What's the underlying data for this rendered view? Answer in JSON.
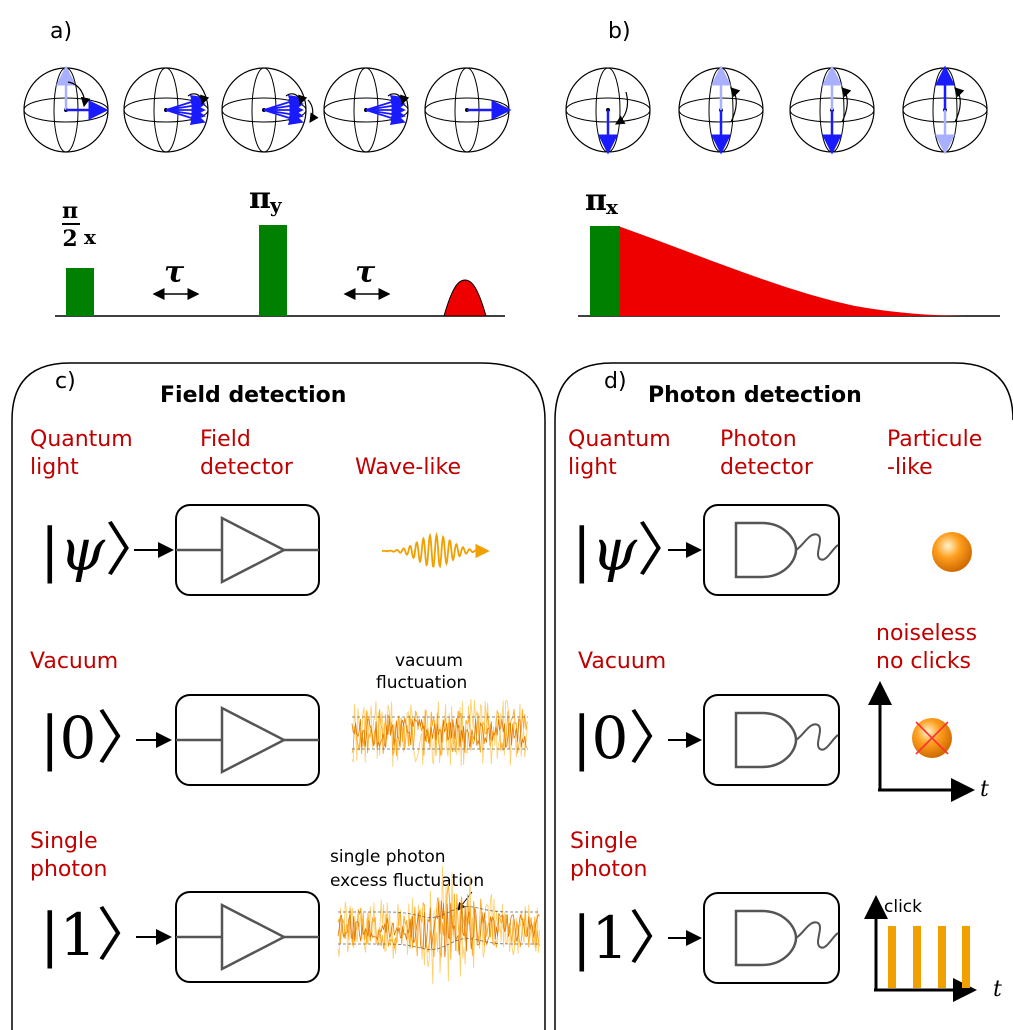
{
  "panels": {
    "a": {
      "label": "a)",
      "pulse_labels": {
        "first": "π/2 x",
        "second": "π",
        "second_sub": "y",
        "delay": "τ"
      }
    },
    "b": {
      "label": "b)",
      "pulse_label": "π",
      "pulse_sub": "x"
    },
    "c": {
      "label": "c)",
      "title": "Field detection",
      "col_source": [
        "Quantum",
        "light"
      ],
      "col_detector": [
        "Field",
        "detector"
      ],
      "col_result": "Wave-like",
      "rows": [
        {
          "name": [],
          "ket": "ψ"
        },
        {
          "name": [
            "Vacuum"
          ],
          "ket": "0",
          "note": [
            "vacuum",
            "fluctuation"
          ]
        },
        {
          "name": [
            "Single",
            "photon"
          ],
          "ket": "1",
          "note": [
            "single photon",
            "excess fluctuation"
          ]
        }
      ]
    },
    "d": {
      "label": "d)",
      "title": "Photon detection",
      "col_source": [
        "Quantum",
        "light"
      ],
      "col_detector": [
        "Photon",
        "detector"
      ],
      "col_result": [
        "Particule",
        "-like"
      ],
      "rows": [
        {
          "name": [],
          "ket": "ψ"
        },
        {
          "name": [
            "Vacuum"
          ],
          "ket": "0",
          "note": [
            "noiseless",
            "no clicks"
          ]
        },
        {
          "name": [
            "Single",
            "photon"
          ],
          "ket": "1",
          "note": [
            "click"
          ]
        }
      ],
      "axis_label": "t"
    }
  },
  "colors": {
    "red_text": "#c00000",
    "pulse_green": "#008000",
    "pulse_red": "#ee0000",
    "vector": "#1a1aff",
    "wave": "#f0a000"
  }
}
